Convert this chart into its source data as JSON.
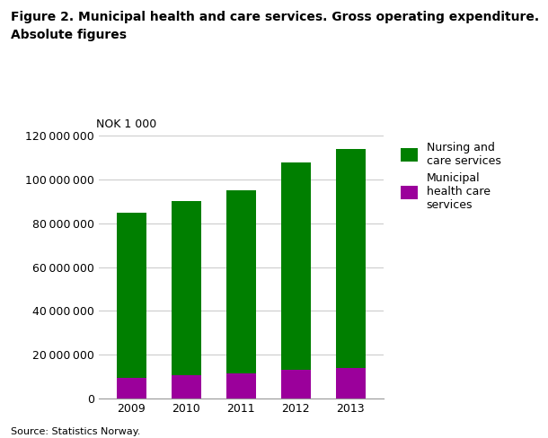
{
  "title_line1": "Figure 2. Municipal health and care services. Gross operating expenditure.",
  "title_line2": "Absolute figures",
  "ylabel": "NOK 1 000",
  "source": "Source: Statistics Norway.",
  "years": [
    2009,
    2010,
    2011,
    2012,
    2013
  ],
  "nursing_values": [
    75500000,
    79500000,
    83500000,
    95000000,
    100000000
  ],
  "health_values": [
    9500000,
    10500000,
    11500000,
    13000000,
    14000000
  ],
  "nursing_color": "#007f00",
  "health_color": "#9b009b",
  "nursing_label": "Nursing and\ncare services",
  "health_label": "Municipal\nhealth care\nservices",
  "ylim": [
    0,
    120000000
  ],
  "yticks": [
    0,
    20000000,
    40000000,
    60000000,
    80000000,
    100000000,
    120000000
  ],
  "background_color": "#ffffff",
  "grid_color": "#cccccc",
  "bar_width": 0.55
}
